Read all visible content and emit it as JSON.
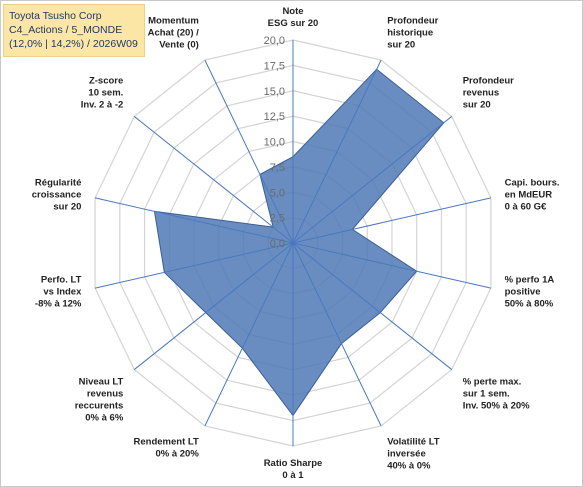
{
  "title_box": {
    "line1": "Toyota Tsusho Corp",
    "line2": "C4_Actions / 5_MONDE",
    "line3": "(12,0% | 14,2%) / 2026W09"
  },
  "chart_data": {
    "type": "radar",
    "rmin": 0,
    "rmax": 20,
    "tick_step": 2.5,
    "tick_labels": [
      "0,0",
      "2,5",
      "5,0",
      "7,5",
      "10,0",
      "12,5",
      "15,0",
      "17,5",
      "20,0"
    ],
    "grid": true,
    "legend": "none",
    "colors": {
      "fill": "#4f79b5",
      "stroke": "#3a5f95",
      "spoke": "#4a78c0",
      "ring": "#d4d4d4"
    },
    "axes": [
      {
        "label": [
          "Note",
          "ESG sur 20"
        ],
        "value": 8.5
      },
      {
        "label": [
          "Profondeur",
          "historique",
          "sur 20"
        ],
        "value": 19.0
      },
      {
        "label": [
          "Profondeur",
          "revenus",
          "sur 20"
        ],
        "value": 19.0
      },
      {
        "label": [
          "Capi. bours.",
          "en MdEUR",
          "0 à 60 G€"
        ],
        "value": 6.0
      },
      {
        "label": [
          "% perfo 1A",
          "positive",
          "50% à 80%"
        ],
        "value": 12.5
      },
      {
        "label": [
          "% perte max.",
          "sur 1 sem.",
          "Inv. 50% à 20%"
        ],
        "value": 11.0
      },
      {
        "label": [
          "Volatilité LT",
          "inversée",
          "40% à 0%"
        ],
        "value": 11.0
      },
      {
        "label": [
          "Ratio Sharpe",
          "0 à 1"
        ],
        "value": 17.0
      },
      {
        "label": [
          "Rendement LT",
          "0% à 20%"
        ],
        "value": 11.5
      },
      {
        "label": [
          "Niveau LT",
          "revenus",
          "reccurents",
          "0% à 6%"
        ],
        "value": 11.0
      },
      {
        "label": [
          "Perfo. LT",
          "vs Index",
          "-8% à 12%"
        ],
        "value": 13.0
      },
      {
        "label": [
          "Régularité",
          "croissance",
          "sur 20"
        ],
        "value": 14.0
      },
      {
        "label": [
          "Z-score",
          "10 sem.",
          "Inv. 2 à -2"
        ],
        "value": 2.5
      },
      {
        "label": [
          "Momentum",
          "Achat (20) /",
          "Vente (0)"
        ],
        "value": 7.5
      }
    ]
  }
}
